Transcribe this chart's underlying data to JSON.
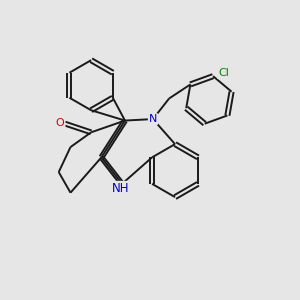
{
  "background_color": "#e6e6e6",
  "fig_size": [
    3.0,
    3.0
  ],
  "dpi": 100,
  "bond_color": "#1a1a1a",
  "bond_lw": 1.4,
  "atom_colors": {
    "O": "#dd0000",
    "N": "#0000cc",
    "Cl": "#008800",
    "C": "#1a1a1a"
  },
  "font_size_atom": 8.0
}
